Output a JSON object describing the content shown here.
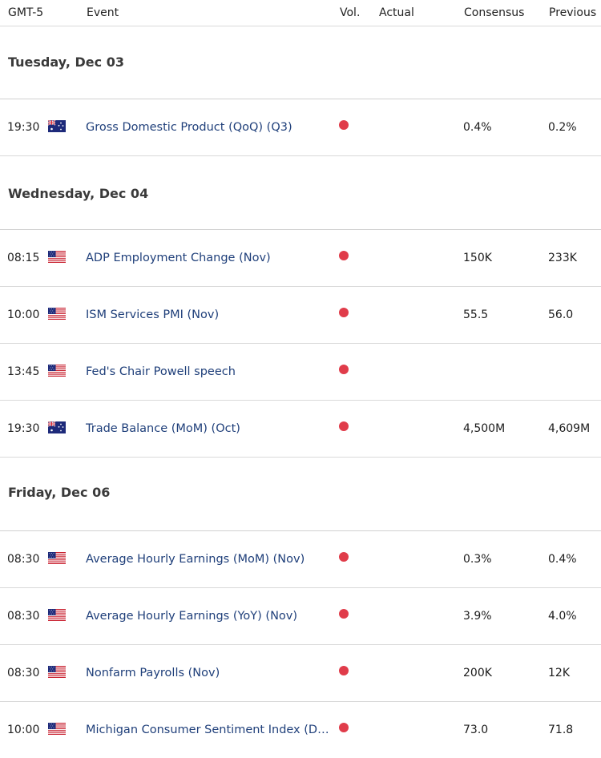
{
  "header": {
    "timezone": "GMT-5",
    "event": "Event",
    "vol": "Vol.",
    "actual": "Actual",
    "consensus": "Consensus",
    "previous": "Previous"
  },
  "days": [
    {
      "label": "Tuesday, Dec 03",
      "events": [
        {
          "time": "19:30",
          "country": "AU",
          "event": "Gross Domestic Product (QoQ) (Q3)",
          "actual": "",
          "consensus": "0.4%",
          "previous": "0.2%"
        }
      ]
    },
    {
      "label": "Wednesday, Dec 04",
      "events": [
        {
          "time": "08:15",
          "country": "US",
          "event": "ADP Employment Change (Nov)",
          "actual": "",
          "consensus": "150K",
          "previous": "233K"
        },
        {
          "time": "10:00",
          "country": "US",
          "event": "ISM Services PMI (Nov)",
          "actual": "",
          "consensus": "55.5",
          "previous": "56.0"
        },
        {
          "time": "13:45",
          "country": "US",
          "event": "Fed's Chair Powell speech",
          "actual": "",
          "consensus": "",
          "previous": ""
        },
        {
          "time": "19:30",
          "country": "AU",
          "event": "Trade Balance (MoM) (Oct)",
          "actual": "",
          "consensus": "4,500M",
          "previous": "4,609M"
        }
      ]
    },
    {
      "label": "Friday, Dec 06",
      "events": [
        {
          "time": "08:30",
          "country": "US",
          "event": "Average Hourly Earnings (MoM) (Nov)",
          "actual": "",
          "consensus": "0.3%",
          "previous": "0.4%"
        },
        {
          "time": "08:30",
          "country": "US",
          "event": "Average Hourly Earnings (YoY) (Nov)",
          "actual": "",
          "consensus": "3.9%",
          "previous": "4.0%"
        },
        {
          "time": "08:30",
          "country": "US",
          "event": "Nonfarm Payrolls (Nov)",
          "actual": "",
          "consensus": "200K",
          "previous": "12K"
        },
        {
          "time": "10:00",
          "country": "US",
          "event": "Michigan Consumer Sentiment Index (Dec)",
          "actual": "",
          "consensus": "73.0",
          "previous": "71.8"
        }
      ]
    }
  ],
  "colors": {
    "volatility_dot": "#e03c4a",
    "event_text": "#1f3f7a"
  }
}
